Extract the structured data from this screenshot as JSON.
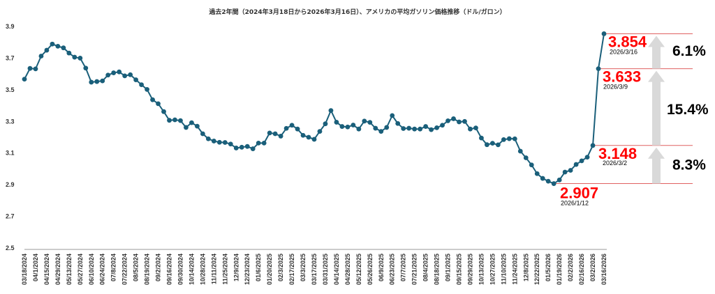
{
  "chart_data": {
    "type": "line",
    "title": "過去2年間（2024年3月18日から2026年3月16日）、アメリカの平均ガソリン価格推移（ドル/ガロン）",
    "ylim": [
      2.5,
      3.9
    ],
    "yticks": [
      "2.5",
      "2.7",
      "2.9",
      "3.1",
      "3.3",
      "3.5",
      "3.7",
      "3.9"
    ],
    "xtick_labels": [
      "03/18/2024",
      "04/1/2024",
      "04/15/2024",
      "04/29/2024",
      "05/13/2024",
      "05/27/2024",
      "06/10/2024",
      "06/24/2024",
      "07/8/2024",
      "07/22/2024",
      "08/5/2024",
      "08/19/2024",
      "09/2/2024",
      "09/16/2024",
      "09/30/2024",
      "10/14/2024",
      "10/28/2024",
      "11/11/2024",
      "11/25/2024",
      "12/9/2024",
      "12/23/2024",
      "01/6/2025",
      "01/20/2025",
      "02/3/2025",
      "02/17/2025",
      "03/3/2025",
      "03/17/2025",
      "03/31/2025",
      "04/14/2025",
      "04/28/2025",
      "05/12/2025",
      "05/26/2025",
      "06/9/2025",
      "06/23/2025",
      "07/7/2025",
      "07/21/2025",
      "08/4/2025",
      "08/18/2025",
      "09/1/2025",
      "09/15/2025",
      "09/29/2025",
      "10/13/2025",
      "10/27/2025",
      "11/10/2025",
      "11/24/2025",
      "12/8/2025",
      "12/22/2025",
      "01/5/2026",
      "01/19/2026",
      "02/2/2026",
      "02/16/2026",
      "03/2/2026",
      "03/16/2026"
    ],
    "series": [
      {
        "color": "#1a5f7a",
        "values": [
          3.567,
          3.635,
          3.632,
          3.713,
          3.75,
          3.789,
          3.775,
          3.765,
          3.732,
          3.706,
          3.7,
          3.637,
          3.548,
          3.552,
          3.556,
          3.593,
          3.607,
          3.613,
          3.588,
          3.595,
          3.563,
          3.532,
          3.502,
          3.437,
          3.412,
          3.362,
          3.307,
          3.31,
          3.305,
          3.262,
          3.292,
          3.27,
          3.222,
          3.19,
          3.176,
          3.168,
          3.167,
          3.157,
          3.132,
          3.137,
          3.142,
          3.127,
          3.163,
          3.163,
          3.227,
          3.222,
          3.207,
          3.256,
          3.276,
          3.252,
          3.212,
          3.2,
          3.187,
          3.237,
          3.285,
          3.369,
          3.295,
          3.268,
          3.265,
          3.277,
          3.252,
          3.302,
          3.294,
          3.257,
          3.237,
          3.262,
          3.337,
          3.287,
          3.255,
          3.257,
          3.252,
          3.252,
          3.268,
          3.248,
          3.26,
          3.276,
          3.304,
          3.317,
          3.297,
          3.3,
          3.252,
          3.259,
          3.195,
          3.153,
          3.162,
          3.152,
          3.185,
          3.191,
          3.19,
          3.112,
          3.07,
          3.025,
          2.97,
          2.94,
          2.922,
          2.907,
          2.93,
          2.98,
          2.991,
          3.028,
          3.051,
          3.074,
          3.148,
          3.633,
          3.854
        ]
      }
    ],
    "annotations": [
      {
        "value": "3.854",
        "date": "2026/3/16"
      },
      {
        "value": "3.633",
        "date": "2026/3/9"
      },
      {
        "value": "3.148",
        "date": "2026/3/2"
      },
      {
        "value": "2.907",
        "date": "2026/1/12"
      }
    ],
    "percent_changes": [
      "6.1%",
      "15.4%",
      "8.3%"
    ],
    "colors": {
      "line": "#1a5f7a",
      "annotation": "#ff0000",
      "arrow": "#d9d9d9",
      "axis": "#999999"
    }
  }
}
